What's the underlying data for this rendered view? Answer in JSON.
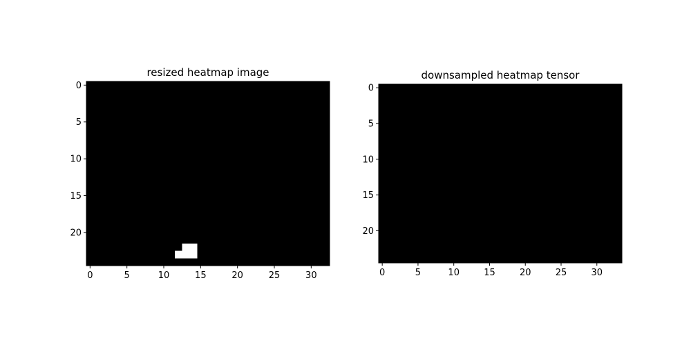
{
  "chart_data": [
    {
      "type": "heatmap",
      "title": "resized heatmap image",
      "xlabel": "",
      "ylabel": "",
      "rows": 25,
      "cols": 33,
      "colormap": "gray",
      "background_value": 0,
      "xlim": [
        -0.5,
        32.5
      ],
      "ylim": [
        24.5,
        -0.5
      ],
      "xticks": [
        0,
        5,
        10,
        15,
        20,
        25,
        30
      ],
      "yticks": [
        0,
        5,
        10,
        15,
        20
      ],
      "nonzero_cells": [
        {
          "row": 22,
          "col": 13,
          "value": 1
        },
        {
          "row": 22,
          "col": 14,
          "value": 1
        },
        {
          "row": 23,
          "col": 12,
          "value": 1
        },
        {
          "row": 23,
          "col": 13,
          "value": 1
        },
        {
          "row": 23,
          "col": 14,
          "value": 1
        }
      ]
    },
    {
      "type": "heatmap",
      "title": "downsampled heatmap tensor",
      "xlabel": "",
      "ylabel": "",
      "rows": 25,
      "cols": 34,
      "colormap": "gray",
      "background_value": 0,
      "xlim": [
        -0.5,
        33.5
      ],
      "ylim": [
        24.5,
        -0.5
      ],
      "xticks": [
        0,
        5,
        10,
        15,
        20,
        25,
        30
      ],
      "yticks": [
        0,
        5,
        10,
        15,
        20
      ],
      "nonzero_cells": []
    }
  ],
  "colors": {
    "background": "#ffffff",
    "zero_value": "#000000",
    "max_value": "#ffffff",
    "axis": "#000000"
  }
}
